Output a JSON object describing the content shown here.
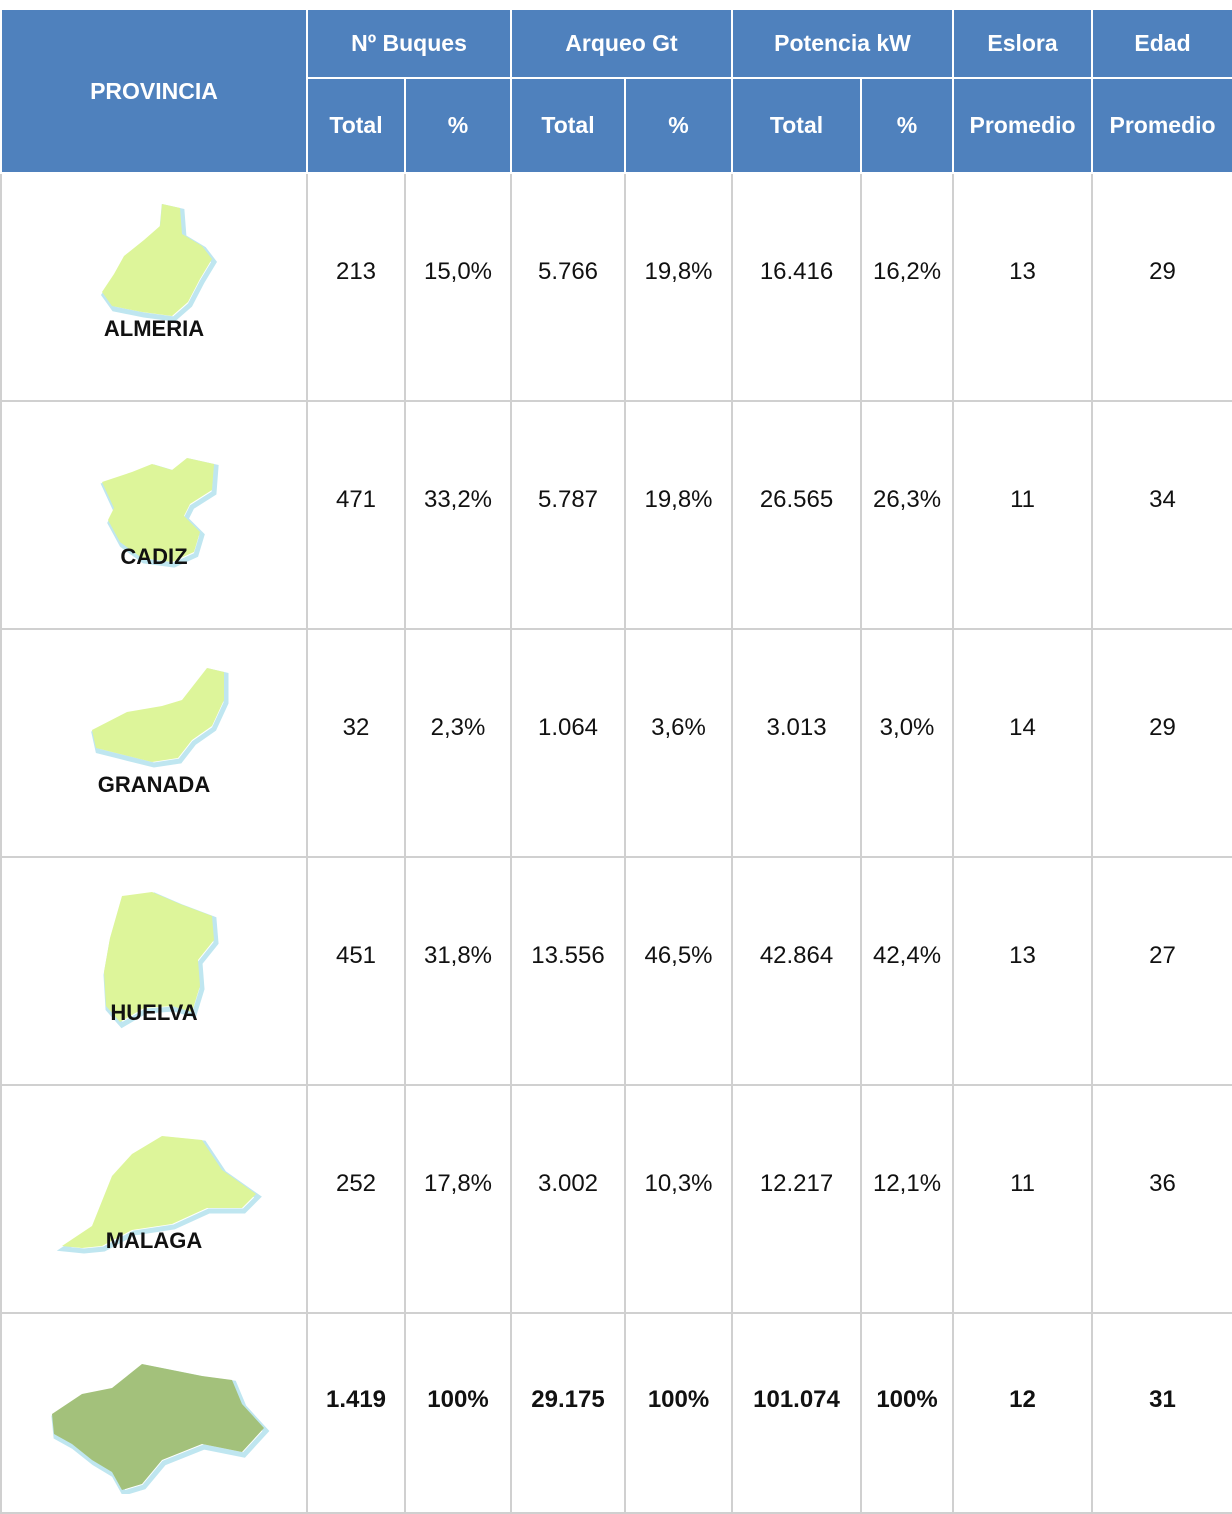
{
  "table": {
    "header": {
      "provincia": "PROVINCIA",
      "groups": [
        "Nº Buques",
        "Arqueo Gt",
        "Potencia kW",
        "Eslora",
        "Edad"
      ],
      "subheaders": [
        "Total",
        "%",
        "Total",
        "%",
        "Total",
        "%",
        "Promedio",
        "Promedio"
      ]
    },
    "rows": [
      {
        "name": "ALMERIA",
        "cells": [
          "213",
          "15,0%",
          "5.766",
          "19,8%",
          "16.416",
          "16,2%",
          "13",
          "29"
        ]
      },
      {
        "name": "CADIZ",
        "cells": [
          "471",
          "33,2%",
          "5.787",
          "19,8%",
          "26.565",
          "26,3%",
          "11",
          "34"
        ]
      },
      {
        "name": "GRANADA",
        "cells": [
          "32",
          "2,3%",
          "1.064",
          "3,6%",
          "3.013",
          "3,0%",
          "14",
          "29"
        ]
      },
      {
        "name": "HUELVA",
        "cells": [
          "451",
          "31,8%",
          "13.556",
          "46,5%",
          "42.864",
          "42,4%",
          "13",
          "27"
        ]
      },
      {
        "name": "MALAGA",
        "cells": [
          "252",
          "17,8%",
          "3.002",
          "10,3%",
          "12.217",
          "12,1%",
          "11",
          "36"
        ]
      }
    ],
    "total": {
      "cells": [
        "1.419",
        "100%",
        "29.175",
        "100%",
        "101.074",
        "100%",
        "12",
        "31"
      ]
    }
  }
}
